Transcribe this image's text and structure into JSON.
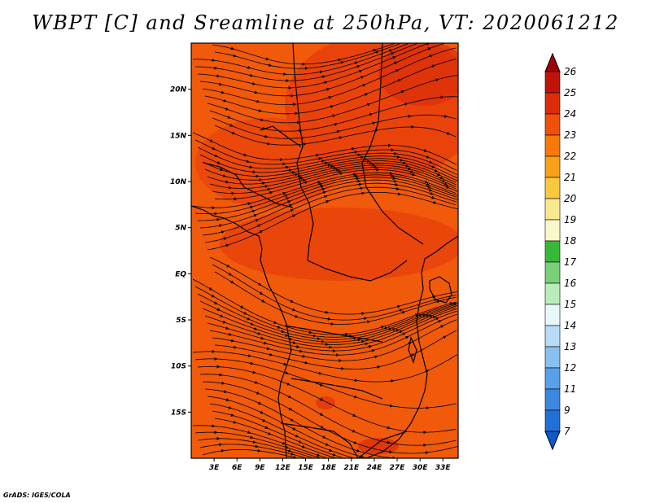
{
  "title": "WBPT [C] and Sreamline at 250hPa, VT: 2020061212",
  "credit": "GrADS: IGES/COLA",
  "map": {
    "lon_range": [
      0,
      35
    ],
    "lat_range": [
      -20,
      25
    ],
    "lat_ticks": [
      {
        "value": 20,
        "label": "20N"
      },
      {
        "value": 15,
        "label": "15N"
      },
      {
        "value": 10,
        "label": "10N"
      },
      {
        "value": 5,
        "label": "5N"
      },
      {
        "value": 0,
        "label": "EQ"
      },
      {
        "value": -5,
        "label": "5S"
      },
      {
        "value": -10,
        "label": "10S"
      },
      {
        "value": -15,
        "label": "15S"
      }
    ],
    "lon_ticks": [
      {
        "value": 3,
        "label": "3E"
      },
      {
        "value": 6,
        "label": "6E"
      },
      {
        "value": 9,
        "label": "9E"
      },
      {
        "value": 12,
        "label": "12E"
      },
      {
        "value": 15,
        "label": "15E"
      },
      {
        "value": 18,
        "label": "18E"
      },
      {
        "value": 21,
        "label": "21E"
      },
      {
        "value": 24,
        "label": "24E"
      },
      {
        "value": 27,
        "label": "27E"
      },
      {
        "value": 30,
        "label": "30E"
      },
      {
        "value": 33,
        "label": "33E"
      }
    ],
    "field_colors": {
      "base": "#f05a0a",
      "warm": "#e8400c",
      "hot": "#d82a0a"
    }
  },
  "colorbar": {
    "levels": [
      "26",
      "25",
      "24",
      "23",
      "22",
      "21",
      "20",
      "19",
      "18",
      "17",
      "16",
      "15",
      "14",
      "13",
      "12",
      "11",
      "9",
      "7"
    ],
    "colors": [
      "#a0000a",
      "#c01408",
      "#dc2c0a",
      "#f0500a",
      "#f87808",
      "#f8a018",
      "#f8c840",
      "#f8e890",
      "#f8f8c8",
      "#38b838",
      "#78d078",
      "#b8ecb8",
      "#e8f8f8",
      "#b8dcf8",
      "#88c0f0",
      "#58a0e8",
      "#3c88e0",
      "#2070d8",
      "#1058c8"
    ]
  }
}
